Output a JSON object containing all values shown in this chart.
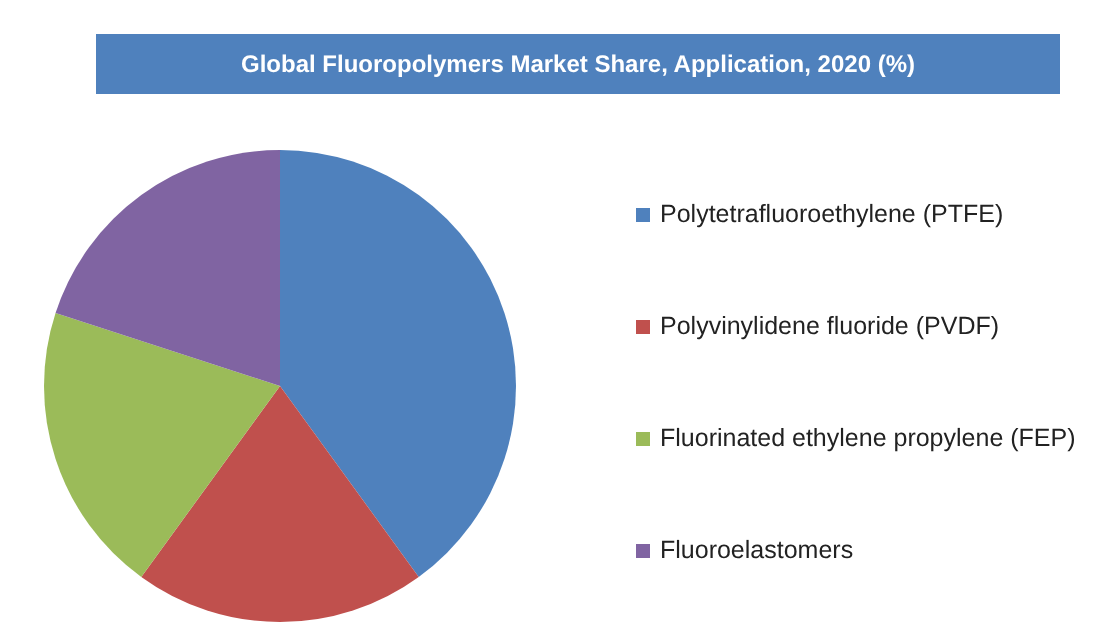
{
  "chart_data": {
    "type": "pie",
    "title": "Global Fluoropolymers Market Share, Application, 2020 (%)",
    "categories": [
      "Polytetrafluoroethylene (PTFE)",
      "Polyvinylidene fluoride (PVDF)",
      "Fluorinated ethylene propylene (FEP)",
      "Fluoroelastomers"
    ],
    "values": [
      40,
      20,
      20,
      20
    ],
    "colors": [
      "#4f81bd",
      "#c0504d",
      "#9bbb59",
      "#8064a2"
    ],
    "legend": "right"
  }
}
